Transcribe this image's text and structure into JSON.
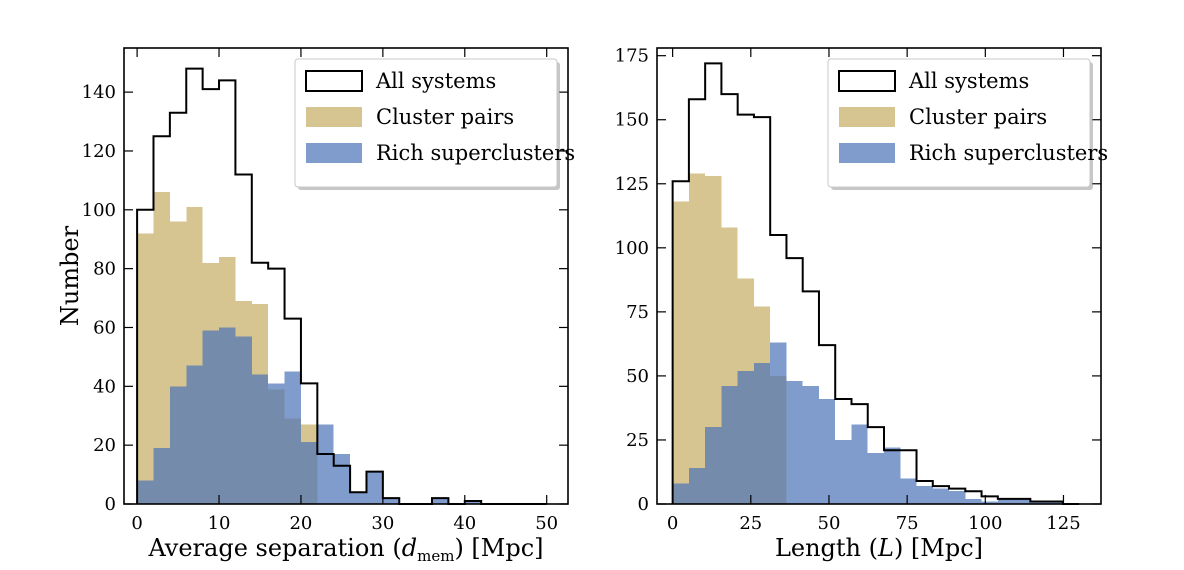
{
  "chart_data": [
    {
      "type": "histogram",
      "xlabel_parts": [
        "Average separation (",
        "d",
        "mem",
        ") [Mpc]"
      ],
      "ylabel": "Number",
      "xlim": [
        -1.6,
        52.6
      ],
      "ylim": [
        0,
        155
      ],
      "xticks": [
        0,
        10,
        20,
        30,
        40,
        50
      ],
      "yticks": [
        0,
        20,
        40,
        60,
        80,
        100,
        120,
        140
      ],
      "bin_edges": [
        0,
        2,
        4,
        6,
        8,
        10,
        12,
        14,
        16,
        18,
        20,
        22,
        24,
        26,
        28,
        30,
        32,
        34,
        36,
        38,
        40,
        42,
        44,
        46,
        48,
        50
      ],
      "series": [
        {
          "name": "All systems",
          "style": "step",
          "color": "#000000",
          "values": [
            100,
            125,
            133,
            148,
            141,
            144,
            112,
            82,
            80,
            63,
            41,
            17,
            13,
            4,
            11,
            2,
            0,
            0,
            2,
            0,
            1,
            0,
            0,
            0,
            0
          ]
        },
        {
          "name": "Cluster pairs",
          "style": "fill",
          "color": "#c8b16b",
          "alpha": 0.75,
          "values": [
            92,
            106,
            96,
            101,
            82,
            84,
            69,
            68,
            39,
            29,
            27,
            0,
            0,
            0,
            0,
            0,
            0,
            0,
            0,
            0,
            0,
            0,
            0,
            0,
            0
          ]
        },
        {
          "name": "Rich superclusters",
          "style": "fill",
          "color": "#4a72b8",
          "alpha": 0.7,
          "values": [
            8,
            19,
            40,
            47,
            59,
            60,
            57,
            44,
            41,
            45,
            21,
            27,
            17,
            4,
            11,
            2,
            0,
            0,
            2,
            0,
            1,
            0,
            0,
            0,
            0
          ]
        }
      ],
      "legend": {
        "position": "top-right",
        "entries": [
          "All systems",
          "Cluster pairs",
          "Rich superclusters"
        ]
      }
    },
    {
      "type": "histogram",
      "xlabel_parts": [
        "Length (",
        "L",
        "",
        ") [Mpc]"
      ],
      "ylabel": "",
      "xlim": [
        -5,
        137
      ],
      "ylim": [
        0,
        178
      ],
      "xticks": [
        0,
        25,
        50,
        75,
        100,
        125
      ],
      "yticks": [
        0,
        25,
        50,
        75,
        100,
        125,
        150,
        175
      ],
      "bin_edges": [
        0,
        5.2,
        10.4,
        15.6,
        20.8,
        26,
        31.2,
        36.4,
        41.6,
        46.8,
        52,
        57.2,
        62.4,
        67.6,
        72.8,
        78,
        83.2,
        88.4,
        93.6,
        98.8,
        104,
        109.2,
        114.4,
        119.6,
        124.8,
        130
      ],
      "series": [
        {
          "name": "All systems",
          "style": "step",
          "color": "#000000",
          "values": [
            126,
            158,
            172,
            160,
            152,
            151,
            105,
            96,
            83,
            62,
            41,
            39,
            30,
            21,
            21,
            9,
            7,
            6,
            5,
            3,
            2,
            2,
            1,
            1,
            0
          ]
        },
        {
          "name": "Cluster pairs",
          "style": "fill",
          "color": "#c8b16b",
          "alpha": 0.75,
          "values": [
            118,
            129,
            128,
            108,
            88,
            77,
            50,
            0,
            0,
            0,
            0,
            0,
            0,
            0,
            0,
            0,
            0,
            0,
            0,
            0,
            0,
            0,
            0,
            0,
            0
          ]
        },
        {
          "name": "Rich superclusters",
          "style": "fill",
          "color": "#4a72b8",
          "alpha": 0.7,
          "values": [
            8,
            14,
            30,
            46,
            52,
            55,
            63,
            48,
            46,
            41,
            25,
            31,
            20,
            22,
            10,
            7,
            6,
            5,
            2,
            1,
            2,
            2,
            1,
            1,
            0
          ]
        }
      ],
      "legend": {
        "position": "top-right",
        "entries": [
          "All systems",
          "Cluster pairs",
          "Rich superclusters"
        ]
      }
    }
  ]
}
